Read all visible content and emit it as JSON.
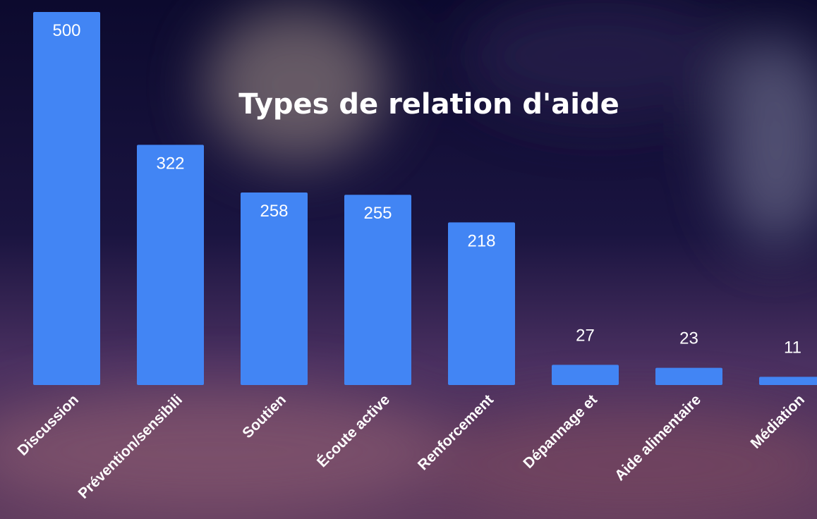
{
  "chart_data": {
    "type": "bar",
    "title": "Types de relation d'aide",
    "categories": [
      "Discussion",
      "Prévention/sensibili",
      "Soutien",
      "Écoute active",
      "Renforcement",
      "Dépannage et",
      "Aide alimentaire",
      "Médiation"
    ],
    "values": [
      500,
      322,
      258,
      255,
      218,
      27,
      23,
      11
    ],
    "color": "#4285f4"
  }
}
